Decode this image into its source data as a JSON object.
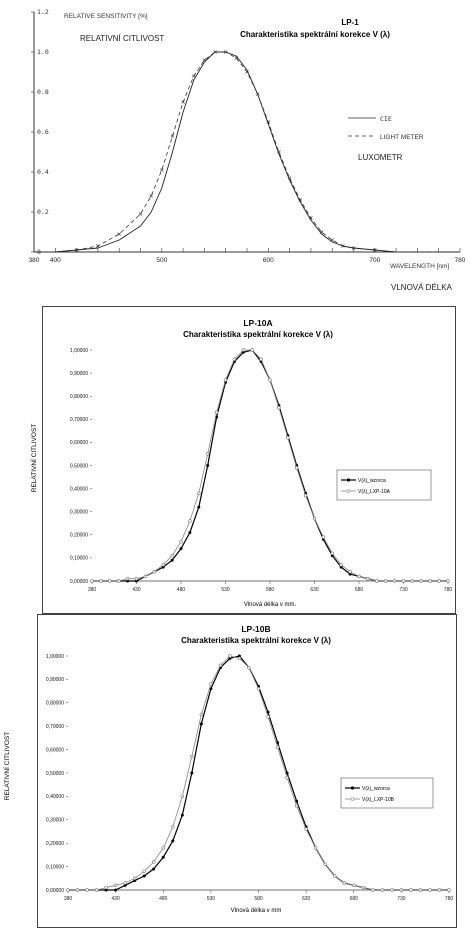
{
  "chart_data": [
    {
      "type": "line",
      "title": "LP-1",
      "subtitle": "Charakteristika spektrální korekce V (λ)",
      "ylabel": "RELATIVE SENSITIVITY [%]",
      "xlabel": "WAVELENGTH [nm]",
      "annotations": {
        "left_caption": "RELATIVNÍ CITLIVOST",
        "legend_caption": "LUXOMETR",
        "below_caption": "VLNOVÁ DÉLKA"
      },
      "xlim": [
        380,
        780
      ],
      "ylim": [
        0,
        1.2
      ],
      "x_ticks": [
        "380",
        "400",
        "500",
        "600",
        "700",
        "780"
      ],
      "y_ticks": [
        "0",
        "0.2",
        "0.4",
        "0.6",
        "0.8",
        "1.0",
        "1.2"
      ],
      "legend": "right",
      "grid": false,
      "series": [
        {
          "name": "CIE",
          "x": [
            380,
            400,
            420,
            440,
            460,
            480,
            490,
            500,
            510,
            520,
            530,
            540,
            550,
            560,
            570,
            580,
            590,
            600,
            610,
            620,
            630,
            640,
            650,
            660,
            670,
            680,
            700,
            720,
            740,
            760,
            780
          ],
          "y": [
            0.0,
            0.0,
            0.01,
            0.02,
            0.06,
            0.13,
            0.2,
            0.32,
            0.5,
            0.7,
            0.86,
            0.95,
            1.0,
            1.0,
            0.98,
            0.91,
            0.79,
            0.64,
            0.49,
            0.36,
            0.25,
            0.16,
            0.09,
            0.05,
            0.03,
            0.02,
            0.01,
            0.0,
            0.0,
            0.0,
            0.0
          ]
        },
        {
          "name": "LIGHT METER",
          "x": [
            380,
            400,
            420,
            440,
            460,
            480,
            490,
            500,
            510,
            520,
            530,
            540,
            550,
            560,
            570,
            580,
            590,
            600,
            610,
            620,
            630,
            640,
            650,
            660,
            670,
            680,
            700,
            720,
            740,
            760,
            780
          ],
          "y": [
            0.0,
            0.0,
            0.01,
            0.03,
            0.09,
            0.19,
            0.28,
            0.41,
            0.58,
            0.75,
            0.88,
            0.96,
            1.0,
            1.0,
            0.97,
            0.9,
            0.79,
            0.65,
            0.5,
            0.37,
            0.26,
            0.17,
            0.1,
            0.06,
            0.03,
            0.02,
            0.01,
            0.0,
            0.0,
            0.0,
            0.0
          ]
        }
      ]
    },
    {
      "type": "line",
      "title": "LP-10A",
      "subtitle": "Charakteristika spektrální korekce V (λ)",
      "ylabel": "RELATIVNÍ CITLIVOST",
      "xlabel": "Vlnová délka v mm.",
      "xlim": [
        380,
        780
      ],
      "ylim": [
        0,
        1
      ],
      "x_ticks": [
        "380",
        "430",
        "480",
        "530",
        "580",
        "630",
        "680",
        "730",
        "780"
      ],
      "y_ticks": [
        "0,00000",
        "0,10000",
        "0,20000",
        "0,30000",
        "0,40000",
        "0,50000",
        "0,60000",
        "0,70000",
        "0,80000",
        "0,90000",
        "1,00000"
      ],
      "legend": "right",
      "grid": false,
      "series": [
        {
          "name": "V(λ)_wzorca",
          "x": [
            380,
            390,
            400,
            410,
            420,
            430,
            440,
            450,
            460,
            470,
            480,
            490,
            500,
            510,
            520,
            530,
            540,
            550,
            560,
            570,
            580,
            590,
            600,
            610,
            620,
            630,
            640,
            650,
            660,
            670,
            680,
            690,
            700,
            710,
            720,
            730,
            740,
            750,
            760,
            770,
            780
          ],
          "y": [
            0.0,
            0.0,
            0.0,
            0.0,
            0.0,
            0.0,
            0.02,
            0.04,
            0.06,
            0.09,
            0.14,
            0.21,
            0.32,
            0.5,
            0.71,
            0.86,
            0.95,
            0.99,
            1.0,
            0.95,
            0.87,
            0.76,
            0.63,
            0.5,
            0.38,
            0.27,
            0.18,
            0.11,
            0.06,
            0.03,
            0.02,
            0.01,
            0.0,
            0.0,
            0.0,
            0.0,
            0.0,
            0.0,
            0.0,
            0.0,
            0.0
          ]
        },
        {
          "name": "V(λ)_LXP-10A",
          "x": [
            380,
            390,
            400,
            410,
            420,
            430,
            440,
            450,
            460,
            470,
            480,
            490,
            500,
            510,
            520,
            530,
            540,
            550,
            560,
            570,
            580,
            590,
            600,
            610,
            620,
            630,
            640,
            650,
            660,
            670,
            680,
            690,
            700,
            710,
            720,
            730,
            740,
            750,
            760,
            770,
            780
          ],
          "y": [
            0.0,
            0.0,
            0.0,
            0.0,
            0.01,
            0.01,
            0.02,
            0.04,
            0.07,
            0.11,
            0.17,
            0.26,
            0.38,
            0.55,
            0.73,
            0.87,
            0.96,
            1.0,
            1.0,
            0.96,
            0.87,
            0.75,
            0.62,
            0.49,
            0.37,
            0.27,
            0.19,
            0.12,
            0.07,
            0.04,
            0.02,
            0.01,
            0.0,
            0.0,
            0.0,
            0.0,
            0.0,
            0.0,
            0.0,
            0.0,
            0.0
          ]
        }
      ]
    },
    {
      "type": "line",
      "title": "LP-10B",
      "subtitle": "Charakteristika spektrální korekce V (λ)",
      "ylabel": "RELATIVNÍ CITLIVOST",
      "xlabel": "Vlnová délka v mm",
      "xlim": [
        380,
        780
      ],
      "ylim": [
        0,
        1
      ],
      "x_ticks": [
        "380",
        "430",
        "480",
        "530",
        "580",
        "630",
        "680",
        "730",
        "780"
      ],
      "y_ticks": [
        "0,00000",
        "0,10000",
        "0,20000",
        "0,30000",
        "0,40000",
        "0,50000",
        "0,60000",
        "0,70000",
        "0,80000",
        "0,90000",
        "1,00000"
      ],
      "legend": "right",
      "grid": false,
      "series": [
        {
          "name": "V(λ)_wzorca",
          "x": [
            380,
            390,
            400,
            410,
            420,
            430,
            440,
            450,
            460,
            470,
            480,
            490,
            500,
            510,
            520,
            530,
            540,
            550,
            560,
            570,
            580,
            590,
            600,
            610,
            620,
            630,
            640,
            650,
            660,
            670,
            680,
            690,
            700,
            710,
            720,
            730,
            740,
            750,
            760,
            770,
            780
          ],
          "y": [
            0.0,
            0.0,
            0.0,
            0.0,
            0.0,
            0.0,
            0.02,
            0.04,
            0.06,
            0.09,
            0.14,
            0.21,
            0.32,
            0.5,
            0.71,
            0.86,
            0.95,
            0.99,
            1.0,
            0.95,
            0.87,
            0.76,
            0.63,
            0.5,
            0.38,
            0.27,
            0.18,
            0.11,
            0.06,
            0.03,
            0.02,
            0.01,
            0.0,
            0.0,
            0.0,
            0.0,
            0.0,
            0.0,
            0.0,
            0.0,
            0.0
          ]
        },
        {
          "name": "V(λ)_LXP-10B",
          "x": [
            380,
            390,
            400,
            410,
            420,
            430,
            440,
            450,
            460,
            470,
            480,
            490,
            500,
            510,
            520,
            530,
            540,
            550,
            560,
            570,
            580,
            590,
            600,
            610,
            620,
            630,
            640,
            650,
            660,
            670,
            680,
            690,
            700,
            710,
            720,
            730,
            740,
            750,
            760,
            770,
            780
          ],
          "y": [
            0.0,
            0.0,
            0.0,
            0.0,
            0.01,
            0.02,
            0.03,
            0.05,
            0.08,
            0.12,
            0.18,
            0.27,
            0.4,
            0.57,
            0.75,
            0.88,
            0.96,
            1.0,
            0.99,
            0.95,
            0.86,
            0.74,
            0.61,
            0.48,
            0.36,
            0.26,
            0.18,
            0.11,
            0.06,
            0.03,
            0.02,
            0.01,
            0.0,
            0.0,
            0.0,
            0.0,
            0.0,
            0.0,
            0.0,
            0.0,
            0.0
          ]
        }
      ]
    }
  ]
}
